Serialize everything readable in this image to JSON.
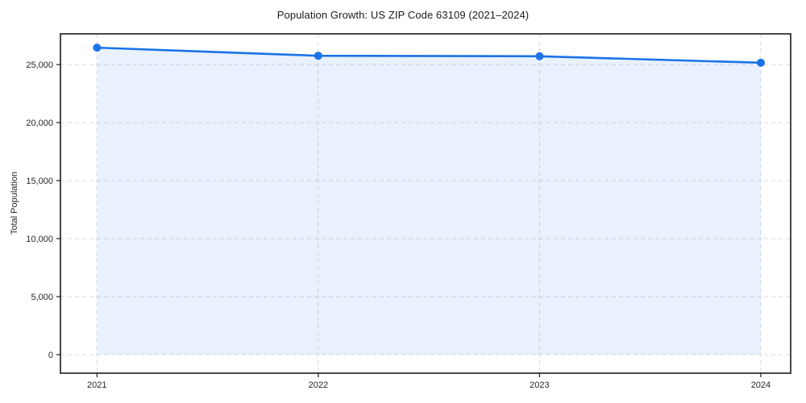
{
  "chart_data": {
    "type": "area",
    "title": "Population Growth: US ZIP Code 63109 (2021–2024)",
    "xlabel": "",
    "ylabel": "Total Population",
    "x": [
      2021,
      2022,
      2023,
      2024
    ],
    "xtick_labels": [
      "2021",
      "2022",
      "2023",
      "2024"
    ],
    "series": [
      {
        "name": "Total Population",
        "values": [
          26460,
          25760,
          25720,
          25160
        ]
      }
    ],
    "yticks": [
      0,
      5000,
      10000,
      15000,
      20000,
      25000
    ],
    "ytick_labels": [
      "0",
      "5,000",
      "10,000",
      "15,000",
      "20,000",
      "25,000"
    ],
    "xlim": [
      2020.835,
      2024.135
    ],
    "ylim": [
      -1600,
      27650
    ],
    "grid": true,
    "grid_style": "dashed",
    "legend": "none",
    "marker": "circle",
    "colors": {
      "line": "#1a73e8",
      "marker": "#1a73e8",
      "area_fill": "#1a73e8",
      "area_opacity": 0.1,
      "grid": "#d9d9d9",
      "spine": "#1a1a1a",
      "tick": "#1a1a1a",
      "text": "#262626",
      "background": "#ffffff"
    }
  }
}
